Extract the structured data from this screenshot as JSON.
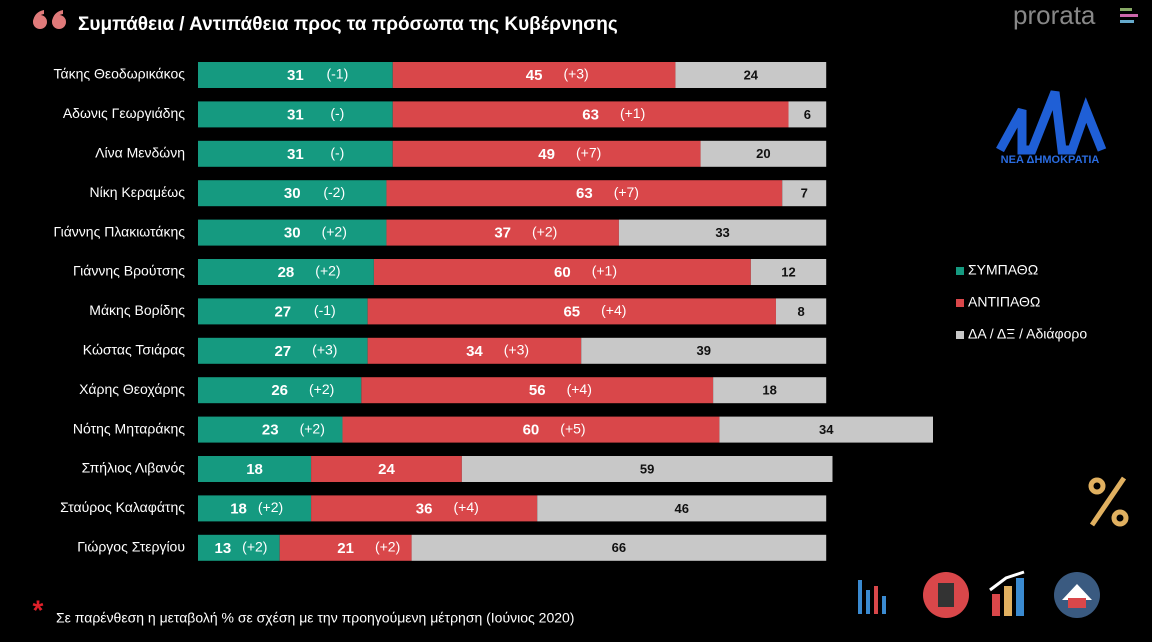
{
  "chart_data": {
    "type": "stacked-bar-horizontal",
    "title": "Συμπάθεια / Αντιπάθεια προς τα πρόσωπα της Κυβέρνησης",
    "brand": "prorata",
    "logo_text": "ΝΕΑ ΔΗΜΟΚΡΑΤΙΑ",
    "footnote": "Σε παρένθεση η μεταβολή % σε σχέση με την προηγούμενη μέτρηση (Ιούνιος 2020)",
    "categories": [
      "Τάκης Θεοδωρικάκος",
      "Αδωνις Γεωργιάδης",
      "Λίνα Μενδώνη",
      "Νίκη Κεραμέως",
      "Γιάννης Πλακιωτάκης",
      "Γιάννης Βρούτσης",
      "Μάκης Βορίδης",
      "Κώστας Τσιάρας",
      "Χάρης Θεοχάρης",
      "Νότης Μηταράκης",
      "Σπήλιος Λιβανός",
      "Σταύρος Καλαφάτης",
      "Γιώργος Στεργίου"
    ],
    "series": [
      {
        "name": "ΣΥΜΠΑΘΩ",
        "color": "#159a80",
        "label_color": "#ffffff",
        "values": [
          31,
          31,
          31,
          30,
          30,
          28,
          27,
          27,
          26,
          23,
          18,
          18,
          13
        ],
        "changes": [
          "(-1)",
          "(-)",
          "(-)",
          "(-2)",
          "(+2)",
          "(+2)",
          "(-1)",
          "(+3)",
          "(+2)",
          "(+2)",
          null,
          "(+2)",
          "(+2)"
        ]
      },
      {
        "name": "ΑΝΤΙΠΑΘΩ",
        "color": "#d9474a",
        "label_color": "#ffffff",
        "values": [
          45,
          63,
          49,
          63,
          37,
          60,
          65,
          34,
          56,
          60,
          24,
          36,
          21
        ],
        "changes": [
          "(+3)",
          "(+1)",
          "(+7)",
          "(+7)",
          "(+2)",
          "(+1)",
          "(+4)",
          "(+3)",
          "(+4)",
          "(+5)",
          null,
          "(+4)",
          "(+2)"
        ]
      },
      {
        "name": "ΔΑ / ΔΞ / Αδιάφορο",
        "color": "#c8c8c8",
        "label_color": "#111111",
        "values": [
          24,
          6,
          20,
          7,
          33,
          12,
          8,
          39,
          18,
          34,
          59,
          46,
          66
        ],
        "changes": [
          null,
          null,
          null,
          null,
          null,
          null,
          null,
          null,
          null,
          null,
          null,
          null,
          null
        ]
      }
    ]
  }
}
